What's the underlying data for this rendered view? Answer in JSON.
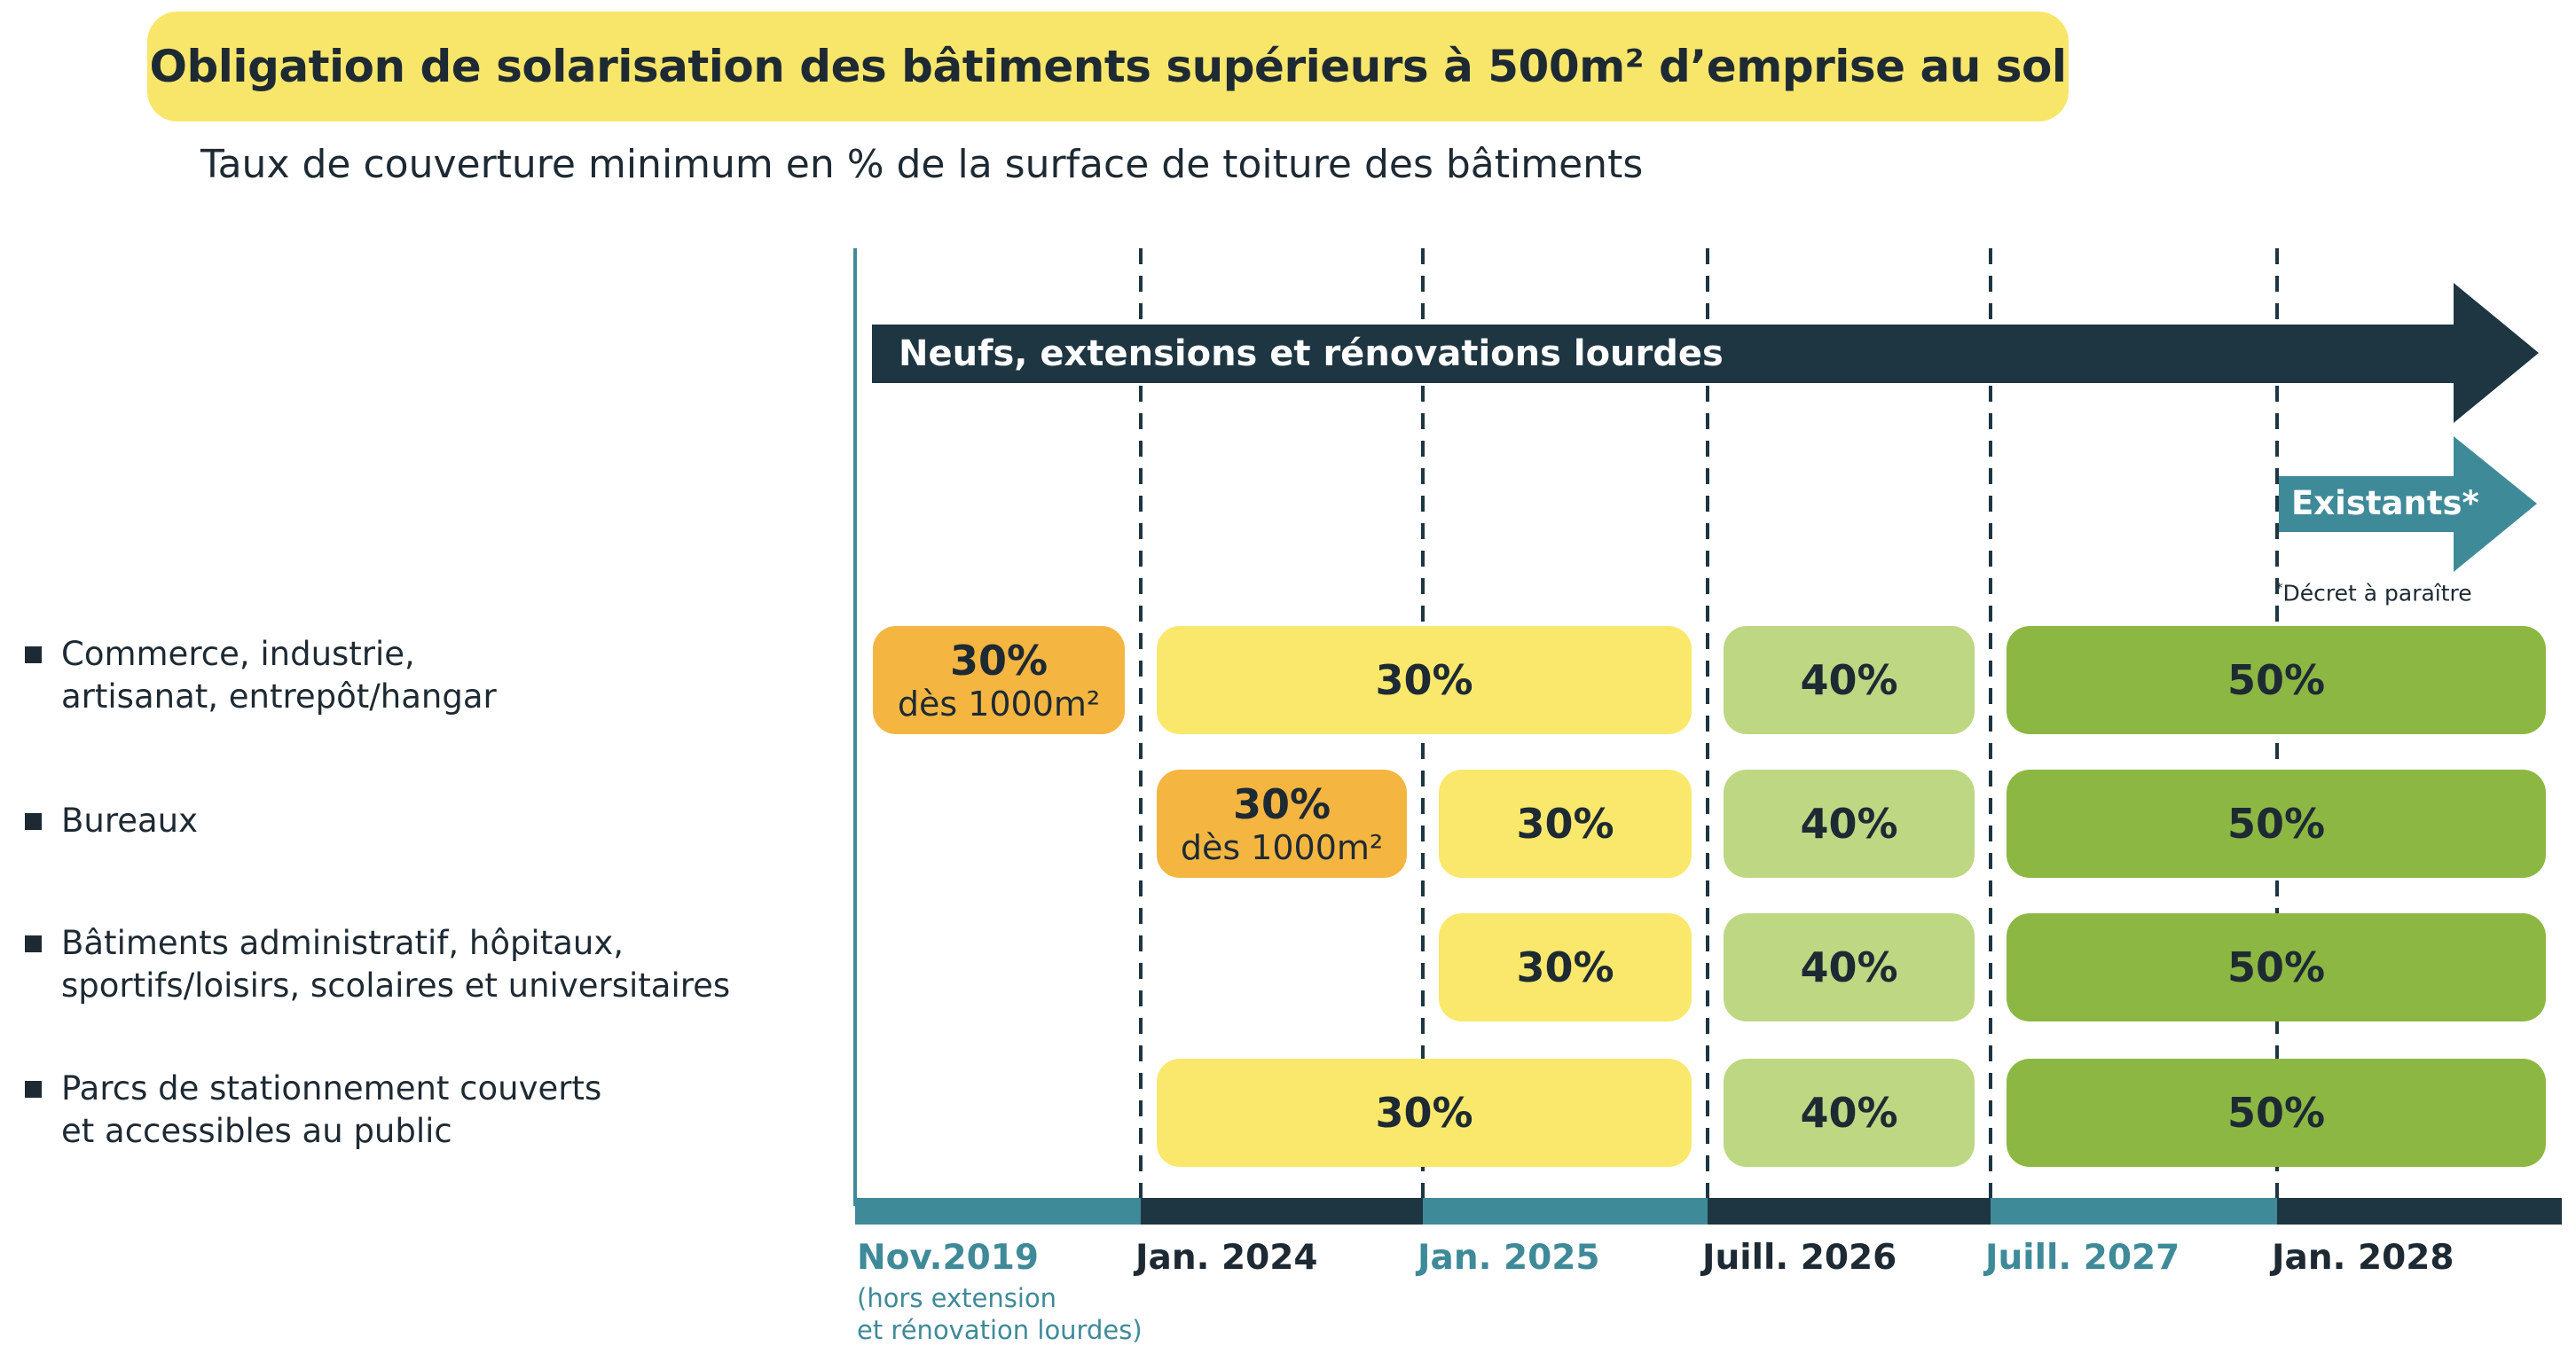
{
  "title": "Obligation de solarisation des bâtiments supérieurs à 500m² d’emprise au sol",
  "subtitle": "Taux de couverture minimum en % de la surface de toiture des bâtiments",
  "categories": [
    {
      "label": "Commerce, industrie,\nartisanat, entrepôt/hangar"
    },
    {
      "label": "Bureaux"
    },
    {
      "label": "Bâtiments administratif, hôpitaux,\nsportifs/loisirs, scolaires et universitaires"
    },
    {
      "label": "Parcs de stationnement couverts\net accessibles au public"
    }
  ],
  "arrows": {
    "new_buildings": "Neufs, extensions et rénovations lourdes",
    "existing": "Existants*",
    "existing_note_mark": "*",
    "existing_note": "Décret à paraître"
  },
  "timeline": [
    {
      "label": "Nov.2019",
      "note": "(hors extension\net rénovation lourdes)"
    },
    {
      "label": "Jan. 2024",
      "note": ""
    },
    {
      "label": "Jan. 2025",
      "note": ""
    },
    {
      "label": "Juill. 2026",
      "note": ""
    },
    {
      "label": "Juill. 2027",
      "note": ""
    },
    {
      "label": "Jan. 2028",
      "note": ""
    }
  ],
  "rows": [
    [
      {
        "value": "30%",
        "note": "dès 1000m²",
        "from": 0,
        "to": 1,
        "color": "#f4b541"
      },
      {
        "value": "30%",
        "note": "",
        "from": 1,
        "to": 3,
        "color": "#f9e86b"
      },
      {
        "value": "40%",
        "note": "",
        "from": 3,
        "to": 4,
        "color": "#bdd782"
      },
      {
        "value": "50%",
        "note": "",
        "from": 4,
        "to": 6,
        "color": "#8db743"
      }
    ],
    [
      {
        "value": "30%",
        "note": "dès 1000m²",
        "from": 1,
        "to": 2,
        "color": "#f4b541"
      },
      {
        "value": "30%",
        "note": "",
        "from": 2,
        "to": 3,
        "color": "#f9e86b"
      },
      {
        "value": "40%",
        "note": "",
        "from": 3,
        "to": 4,
        "color": "#bdd782"
      },
      {
        "value": "50%",
        "note": "",
        "from": 4,
        "to": 6,
        "color": "#8db743"
      }
    ],
    [
      {
        "value": "30%",
        "note": "",
        "from": 2,
        "to": 3,
        "color": "#f9e86b"
      },
      {
        "value": "40%",
        "note": "",
        "from": 3,
        "to": 4,
        "color": "#bdd782"
      },
      {
        "value": "50%",
        "note": "",
        "from": 4,
        "to": 6,
        "color": "#8db743"
      }
    ],
    [
      {
        "value": "30%",
        "note": "",
        "from": 1,
        "to": 3,
        "color": "#f9e86b"
      },
      {
        "value": "40%",
        "note": "",
        "from": 3,
        "to": 4,
        "color": "#bdd782"
      },
      {
        "value": "50%",
        "note": "",
        "from": 4,
        "to": 6,
        "color": "#8db743"
      }
    ]
  ],
  "colors": {
    "dark": "#1e3542",
    "teal": "#3f8a99",
    "title_bg": "#f8e66b"
  }
}
